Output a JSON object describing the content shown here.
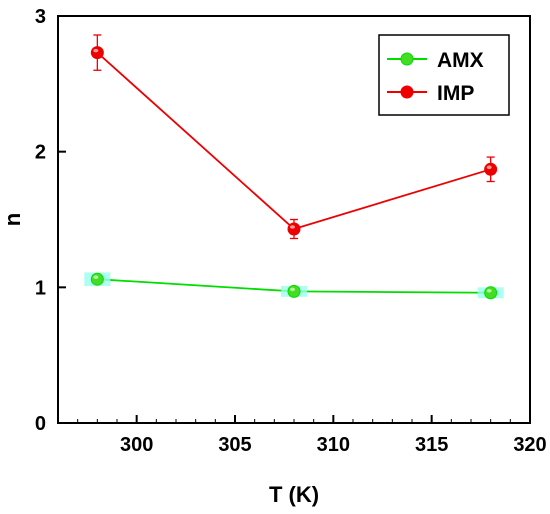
{
  "chart_data": {
    "type": "line",
    "title": "",
    "xlabel": "T (K)",
    "ylabel": "n",
    "xlim": [
      296,
      320
    ],
    "ylim": [
      0,
      3
    ],
    "xticks": [
      300,
      305,
      310,
      315,
      320
    ],
    "yticks": [
      0,
      1,
      2,
      3
    ],
    "grid": false,
    "legend_position": "top-right",
    "series": [
      {
        "name": "AMX",
        "color": "#00dd00",
        "marker_fill": "#44dd22",
        "error_color": "#99ffee",
        "x": [
          298,
          308,
          318
        ],
        "y": [
          1.06,
          0.97,
          0.96
        ],
        "err": [
          0.05,
          0.04,
          0.04
        ]
      },
      {
        "name": "IMP",
        "color": "#ee0000",
        "marker_fill": "#ee0000",
        "error_color": "#ee0000",
        "x": [
          298,
          308,
          318
        ],
        "y": [
          2.73,
          1.43,
          1.87
        ],
        "err": [
          0.13,
          0.07,
          0.09
        ]
      }
    ]
  }
}
